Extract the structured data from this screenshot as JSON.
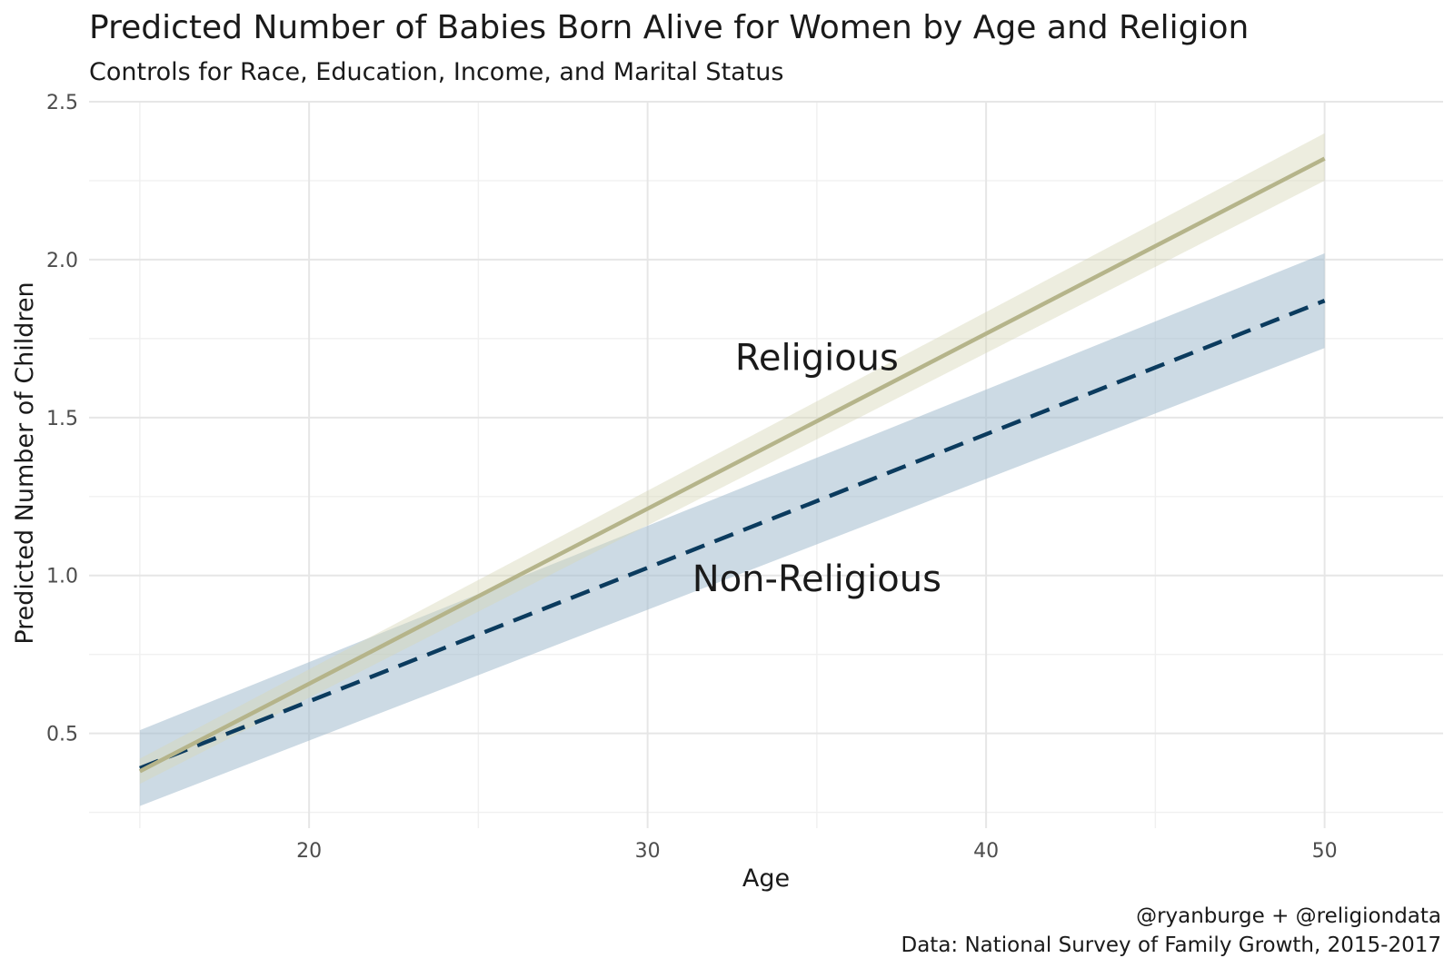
{
  "chart_data": {
    "type": "line",
    "title": "Predicted Number of Babies Born Alive for Women by Age and Religion",
    "subtitle": "Controls for Race, Education, Income, and Marital Status",
    "xlabel": "Age",
    "ylabel": "Predicted Number of Children",
    "xlim": [
      13.5,
      53.5
    ],
    "ylim": [
      0.2,
      2.5
    ],
    "x_ticks": [
      20,
      30,
      40,
      50
    ],
    "x_tick_labels": [
      "20",
      "30",
      "40",
      "50"
    ],
    "y_ticks": [
      0.5,
      1.0,
      1.5,
      2.0,
      2.5
    ],
    "y_tick_labels": [
      "0.5",
      "1.0",
      "1.5",
      "2.0",
      "2.5"
    ],
    "grid": true,
    "series": [
      {
        "name": "Religious",
        "style": "solid",
        "color": "#b5b48a",
        "band_color": "#d8d6b8",
        "x": [
          15,
          50
        ],
        "y": [
          0.38,
          2.32
        ],
        "band_lower": [
          0.34,
          2.25
        ],
        "band_upper": [
          0.42,
          2.4
        ]
      },
      {
        "name": "Non-Religious",
        "style": "dashed",
        "color": "#0b3b5e",
        "band_color": "#a3bccd",
        "x": [
          15,
          50
        ],
        "y": [
          0.39,
          1.87
        ],
        "band_lower": [
          0.27,
          1.72
        ],
        "band_upper": [
          0.51,
          2.02
        ]
      }
    ],
    "annotations": [
      {
        "text": "Religious",
        "x": 35,
        "y": 1.69
      },
      {
        "text": "Non-Religious",
        "x": 35,
        "y": 0.99
      }
    ],
    "caption": [
      "@ryanburge + @religiondata",
      "Data: National Survey of Family Growth, 2015-2017"
    ]
  }
}
